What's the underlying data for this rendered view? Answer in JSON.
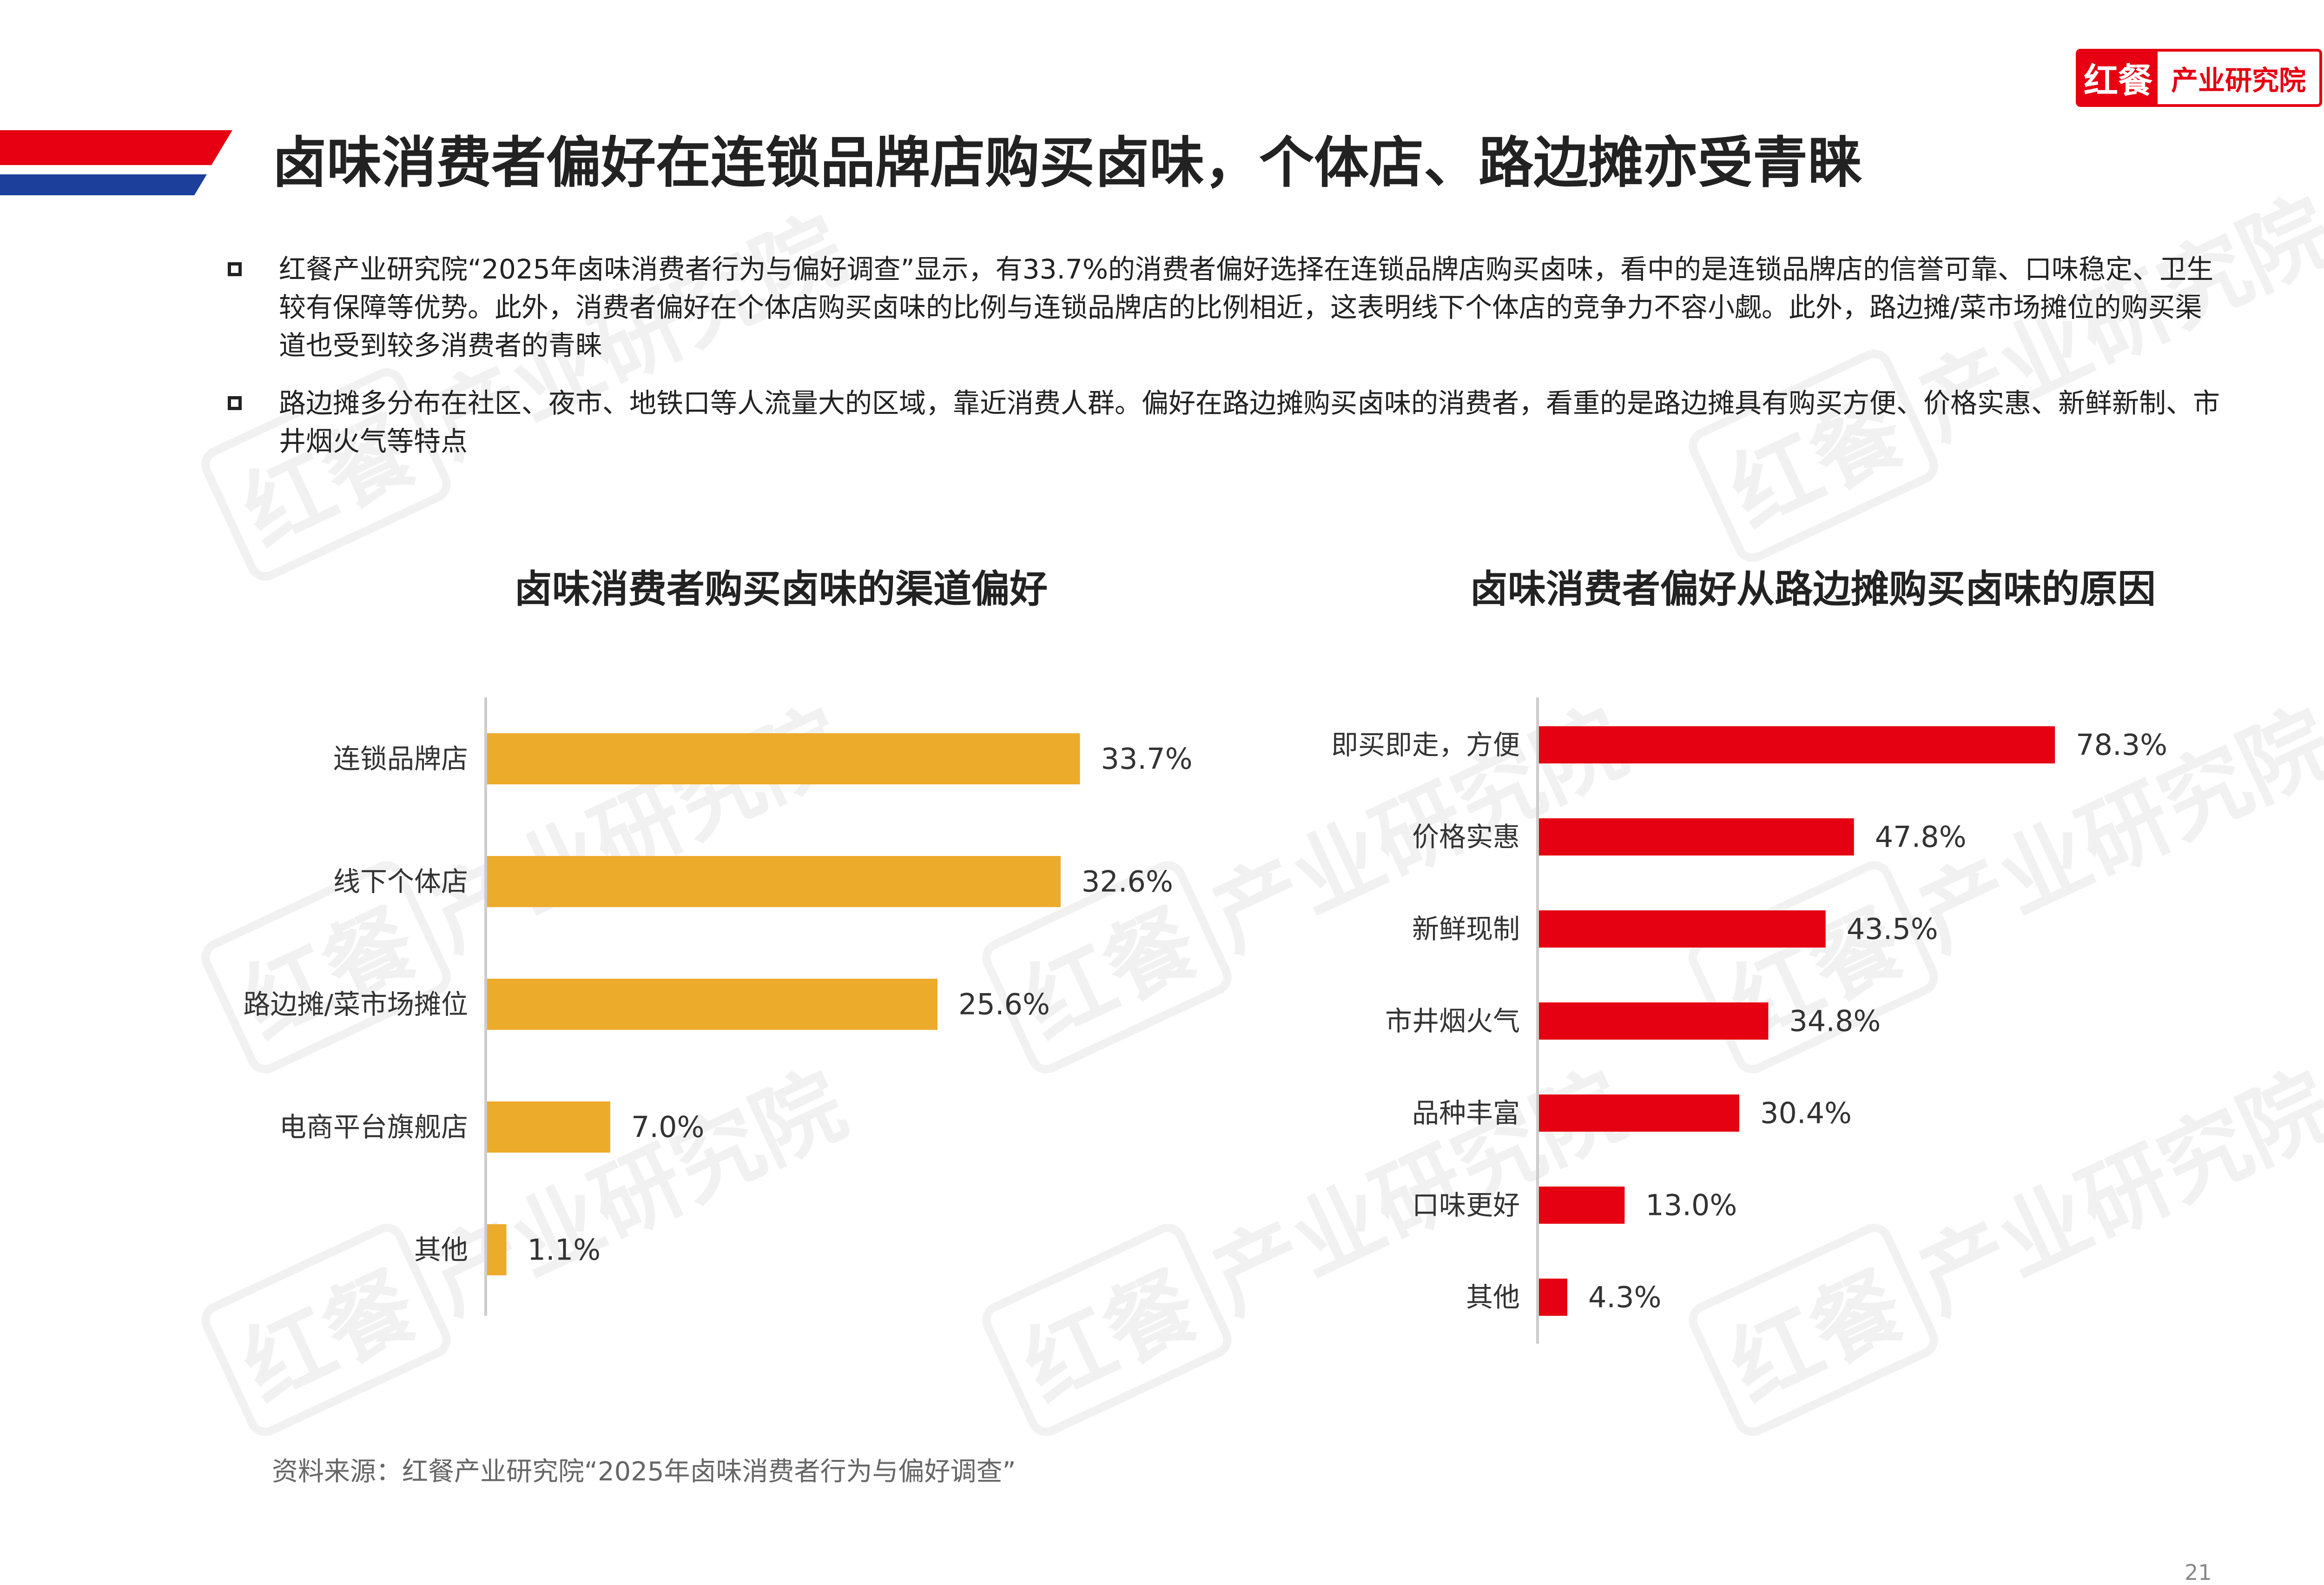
{
  "logo": {
    "mark": "红餐",
    "text": "产业研究院"
  },
  "title": "卤味消费者偏好在连锁品牌店购买卤味，个体店、路边摊亦受青睐",
  "bullets": [
    "红餐产业研究院“2025年卤味消费者行为与偏好调查”显示，有33.7%的消费者偏好选择在连锁品牌店购买卤味，看中的是连锁品牌店的信誉可靠、口味稳定、卫生较有保障等优势。此外，消费者偏好在个体店购买卤味的比例与连锁品牌店的比例相近，这表明线下个体店的竞争力不容小觑。此外，路边摊/菜市场摊位的购买渠道也受到较多消费者的青睐",
    "路边摊多分布在社区、夜市、地铁口等人流量大的区域，靠近消费人群。偏好在路边摊购买卤味的消费者，看重的是路边摊具有购买方便、价格实惠、新鲜新制、市井烟火气等特点"
  ],
  "watermark": {
    "mark": "红餐",
    "text": "产业研究院"
  },
  "chart_data": [
    {
      "type": "bar",
      "orientation": "horizontal",
      "title": "卤味消费者购买卤味的渠道偏好",
      "categories": [
        "连锁品牌店",
        "线下个体店",
        "路边摊/菜市场摊位",
        "电商平台旗舰店",
        "其他"
      ],
      "values": [
        33.7,
        32.6,
        25.6,
        7.0,
        1.1
      ],
      "labels": [
        "33.7%",
        "32.6%",
        "25.6%",
        "7.0%",
        "1.1%"
      ],
      "unit": "%",
      "xlim": [
        0,
        40
      ],
      "color": "#EDAB2C",
      "grid": false,
      "legend": "none"
    },
    {
      "type": "bar",
      "orientation": "horizontal",
      "title": "卤味消费者偏好从路边摊购买卤味的原因",
      "categories": [
        "即买即走，方便",
        "价格实惠",
        "新鲜现制",
        "市井烟火气",
        "品种丰富",
        "口味更好",
        "其他"
      ],
      "values": [
        78.3,
        47.8,
        43.5,
        34.8,
        30.4,
        13.0,
        4.3
      ],
      "labels": [
        "78.3%",
        "47.8%",
        "43.5%",
        "34.8%",
        "30.4%",
        "13.0%",
        "4.3%"
      ],
      "unit": "%",
      "xlim": [
        0,
        90
      ],
      "color": "#E50012",
      "grid": false,
      "legend": "none"
    }
  ],
  "source": "资料来源：红餐产业研究院“2025年卤味消费者行为与偏好调查”",
  "page_number": "21"
}
